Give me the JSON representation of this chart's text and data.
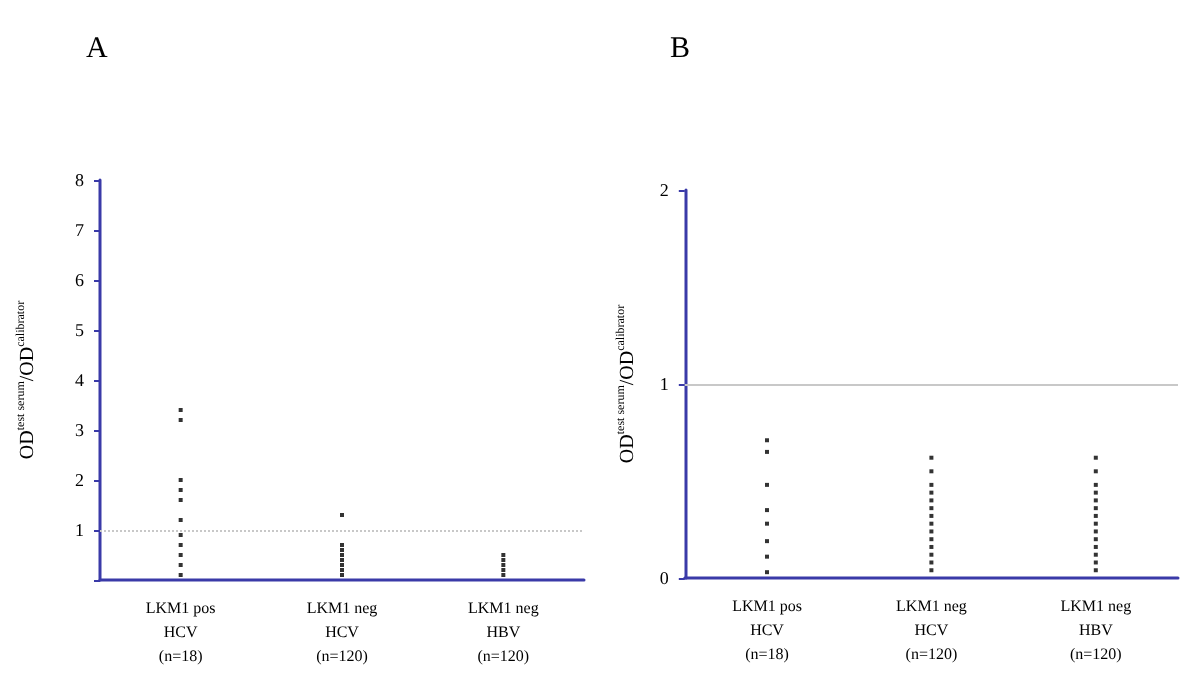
{
  "chart_data": [
    {
      "type": "scatter",
      "title": "A",
      "ylabel": "OD$^{test serum}$/OD$^{calibrator}$",
      "categories": [
        "LKM1 pos\nHCV\n(n=18)",
        "LKM1 neg\nHCV\n(n=120)",
        "LKM1 neg\nHBV\n(n=120)"
      ],
      "ylim": [
        0,
        8
      ],
      "yticks": [
        {
          "value": 0,
          "label": null
        },
        1,
        2,
        3,
        4,
        5,
        6,
        7,
        8
      ],
      "marker": "square",
      "ref_lines": [
        {
          "axis": "y",
          "value": 1,
          "color": "#c8c8c8",
          "line_style": "dotted"
        }
      ],
      "series": [
        {
          "color": "#000000",
          "x": [
            "LKM1 pos\nHCV\n(n=18)",
            "LKM1 pos\nHCV\n(n=18)",
            "LKM1 pos\nHCV\n(n=18)",
            "LKM1 pos\nHCV\n(n=18)",
            "LKM1 pos\nHCV\n(n=18)",
            "LKM1 pos\nHCV\n(n=18)",
            "LKM1 pos\nHCV\n(n=18)",
            "LKM1 pos\nHCV\n(n=18)",
            "LKM1 pos\nHCV\n(n=18)",
            "LKM1 pos\nHCV\n(n=18)",
            "LKM1 pos\nHCV\n(n=18)"
          ],
          "values": [
            3.2,
            3.4,
            1.8,
            2.0,
            1.6,
            1.2,
            0.9,
            0.7,
            0.5,
            0.3,
            0.1
          ]
        },
        {
          "color": "#000000",
          "x": [
            "LKM1 neg\nHCV\n(n=120)",
            "LKM1 neg\nHCV\n(n=120)",
            "LKM1 neg\nHCV\n(n=120)",
            "LKM1 neg\nHCV\n(n=120)",
            "LKM1 neg\nHCV\n(n=120)",
            "LKM1 neg\nHCV\n(n=120)",
            "LKM1 neg\nHCV\n(n=120)",
            "LKM1 neg\nHCV\n(n=120)"
          ],
          "values": [
            0.1,
            0.2,
            0.3,
            0.4,
            0.5,
            0.6,
            0.7,
            1.3
          ]
        },
        {
          "color": "#000000",
          "x": [
            "LKM1 neg\nHBV\n(n=120)",
            "LKM1 neg\nHBV\n(n=120)",
            "LKM1 neg\nHBV\n(n=120)",
            "LKM1 neg\nHBV\n(n=120)",
            "LKM1 neg\nHBV\n(n=120)"
          ],
          "values": [
            0.1,
            0.2,
            0.3,
            0.4,
            0.5
          ]
        }
      ]
    },
    {
      "type": "scatter",
      "title": "B",
      "ylabel": "OD$^{test serum}$/OD$^{calibrator}$",
      "categories": [
        "LKM1 pos\nHCV\n(n=18)",
        "LKM1 neg\nHCV\n(n=120)",
        "LKM1 neg\nHBV\n(n=120)"
      ],
      "ylim": [
        0,
        2
      ],
      "yticks": [
        0,
        1,
        2
      ],
      "marker": "square",
      "ref_lines": [
        {
          "axis": "y",
          "value": 1,
          "color": "#c8c8c8",
          "line_style": "solid"
        }
      ],
      "series": [
        {
          "color": "#000000",
          "x": [
            "LKM1 pos\nHCV\n(n=18)",
            "LKM1 pos\nHCV\n(n=18)",
            "LKM1 pos\nHCV\n(n=18)",
            "LKM1 pos\nHCV\n(n=18)",
            "LKM1 pos\nHCV\n(n=18)",
            "LKM1 pos\nHCV\n(n=18)",
            "LKM1 pos\nHCV\n(n=18)",
            "LKM1 pos\nHCV\n(n=18)"
          ],
          "values": [
            0.03,
            0.11,
            0.19,
            0.28,
            0.35,
            0.48,
            0.65,
            0.71
          ]
        },
        {
          "color": "#000000",
          "x": [
            "LKM1 neg\nHCV\n(n=120)",
            "LKM1 neg\nHCV\n(n=120)",
            "LKM1 neg\nHCV\n(n=120)",
            "LKM1 neg\nHCV\n(n=120)",
            "LKM1 neg\nHCV\n(n=120)",
            "LKM1 neg\nHCV\n(n=120)",
            "LKM1 neg\nHCV\n(n=120)",
            "LKM1 neg\nHCV\n(n=120)",
            "LKM1 neg\nHCV\n(n=120)",
            "LKM1 neg\nHCV\n(n=120)",
            "LKM1 neg\nHCV\n(n=120)",
            "LKM1 neg\nHCV\n(n=120)",
            "LKM1 neg\nHCV\n(n=120)",
            "LKM1 neg\nHCV\n(n=120)"
          ],
          "values": [
            0.04,
            0.08,
            0.12,
            0.16,
            0.2,
            0.24,
            0.28,
            0.32,
            0.36,
            0.4,
            0.44,
            0.48,
            0.55,
            0.62
          ]
        },
        {
          "color": "#000000",
          "x": [
            "LKM1 neg\nHBV\n(n=120)",
            "LKM1 neg\nHBV\n(n=120)",
            "LKM1 neg\nHBV\n(n=120)",
            "LKM1 neg\nHBV\n(n=120)",
            "LKM1 neg\nHBV\n(n=120)",
            "LKM1 neg\nHBV\n(n=120)",
            "LKM1 neg\nHBV\n(n=120)",
            "LKM1 neg\nHBV\n(n=120)",
            "LKM1 neg\nHBV\n(n=120)",
            "LKM1 neg\nHBV\n(n=120)",
            "LKM1 neg\nHBV\n(n=120)",
            "LKM1 neg\nHBV\n(n=120)",
            "LKM1 neg\nHBV\n(n=120)",
            "LKM1 neg\nHBV\n(n=120)"
          ],
          "values": [
            0.04,
            0.08,
            0.12,
            0.16,
            0.2,
            0.24,
            0.28,
            0.32,
            0.36,
            0.4,
            0.44,
            0.48,
            0.55,
            0.62
          ]
        }
      ]
    }
  ]
}
